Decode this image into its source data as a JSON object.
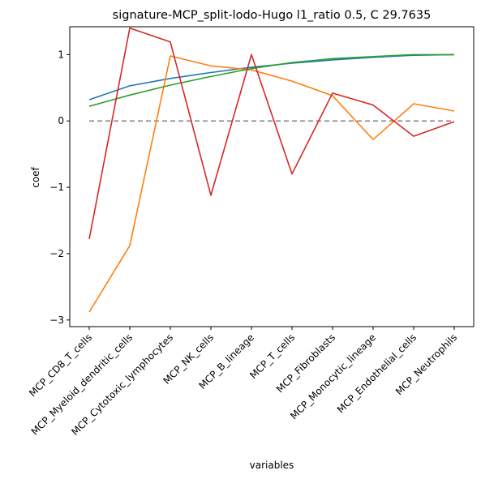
{
  "chart_data": {
    "type": "line",
    "title": "signature-MCP_split-lodo-Hugo l1_ratio 0.5, C 29.7635",
    "xlabel": "variables",
    "ylabel": "coef",
    "categories": [
      "MCP_CD8_T_cells",
      "MCP_Myeloid_dendritic_cells",
      "MCP_Cytotoxic_lymphocytes",
      "MCP_NK_cells",
      "MCP_B_lineage",
      "MCP_T_cells",
      "MCP_Fibroblasts",
      "MCP_Monocytic_lineage",
      "MCP_Endothelial_cells",
      "MCP_Neutrophils"
    ],
    "ylim": [
      -3.1,
      1.42
    ],
    "yticks": [
      -3,
      -2,
      -1,
      0,
      1
    ],
    "ytick_labels": [
      "−3",
      "−2",
      "−1",
      "0",
      "1"
    ],
    "grid": false,
    "series": [
      {
        "color": "#1f77b4",
        "values": [
          0.32,
          0.53,
          0.64,
          0.73,
          0.81,
          0.87,
          0.92,
          0.96,
          0.99,
          1.0
        ]
      },
      {
        "color": "#ff7f0e",
        "values": [
          -2.88,
          -1.88,
          0.98,
          0.83,
          0.77,
          0.6,
          0.38,
          -0.28,
          0.26,
          0.15
        ]
      },
      {
        "color": "#2ca02c",
        "values": [
          0.22,
          0.39,
          0.54,
          0.67,
          0.79,
          0.88,
          0.94,
          0.97,
          1.0,
          1.0
        ]
      },
      {
        "color": "#d62728",
        "values": [
          -1.78,
          1.4,
          1.19,
          -1.12,
          1.0,
          -0.8,
          0.42,
          0.24,
          -0.23,
          -0.01
        ]
      }
    ],
    "reference_line": {
      "y": 0,
      "style": "dashed",
      "color": "#808080"
    }
  }
}
